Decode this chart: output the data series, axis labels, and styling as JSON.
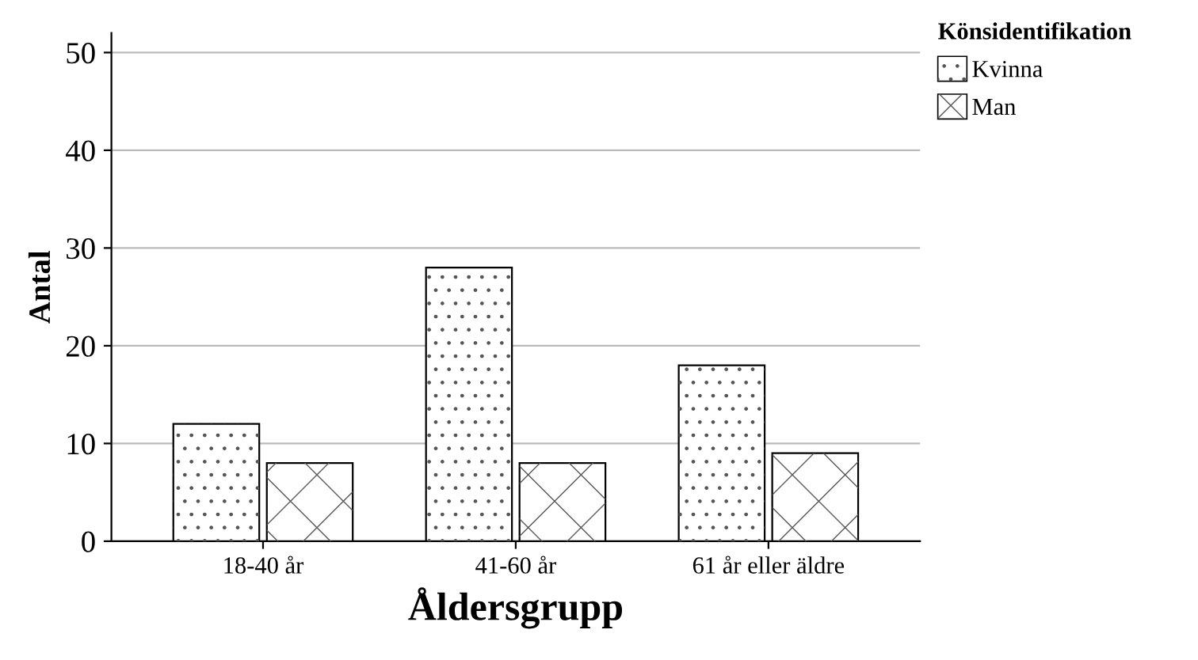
{
  "chart_data": {
    "type": "bar",
    "xlabel": "Åldersgrupp",
    "ylabel": "Antal",
    "legend_title": "Könsidentifikation",
    "categories": [
      "18-40 år",
      "41-60 år",
      "61 år eller äldre"
    ],
    "series": [
      {
        "name": "Kvinna",
        "color": "#ffffff",
        "values": [
          12,
          28,
          18
        ]
      },
      {
        "name": "Man",
        "color": "#ffffff",
        "values": [
          8,
          8,
          9
        ]
      }
    ],
    "ylim": [
      0,
      52
    ],
    "yticks": [
      0,
      10,
      20,
      30,
      40,
      50
    ],
    "grid": "y",
    "legend": "top right"
  }
}
